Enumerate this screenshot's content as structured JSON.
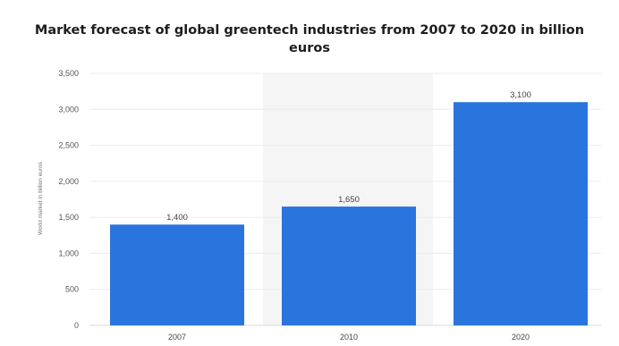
{
  "chart_data": {
    "type": "bar",
    "title": "Market forecast of global greentech industries from 2007 to 2020 in billion euros",
    "xlabel": "",
    "ylabel": "World market in billion euros",
    "categories": [
      "2007",
      "2010",
      "2020"
    ],
    "values": [
      1400,
      1650,
      3100
    ],
    "value_labels": [
      "1,400",
      "1,650",
      "3,100"
    ],
    "ylim": [
      0,
      3500
    ],
    "yticks": [
      0,
      500,
      1000,
      1500,
      2000,
      2500,
      3000,
      3500
    ],
    "ytick_labels": [
      "0",
      "500",
      "1,000",
      "1,500",
      "2,000",
      "2,500",
      "3,000",
      "3,500"
    ],
    "bar_color": "#2a74de",
    "highlight_band_color": "#f5f5f5",
    "grid": true,
    "legend": "none"
  }
}
